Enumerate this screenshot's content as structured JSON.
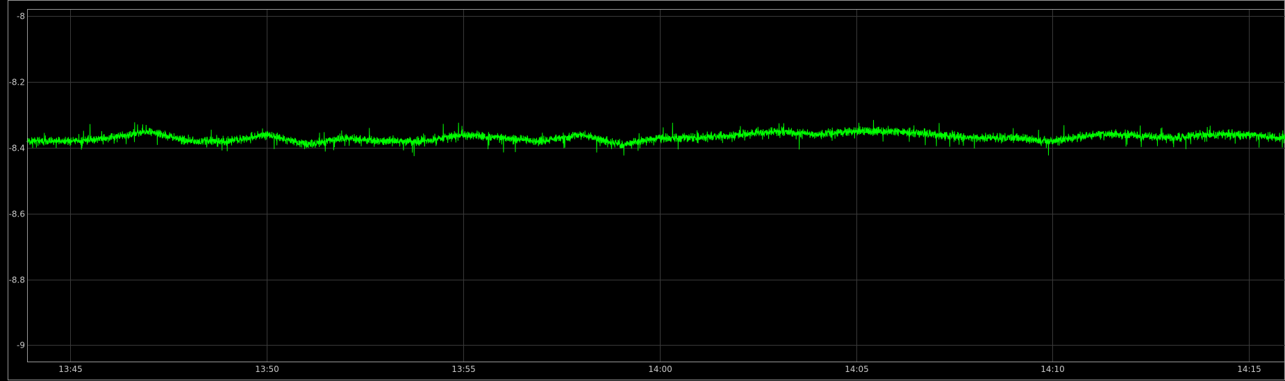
{
  "chart_data": {
    "type": "line",
    "title": "",
    "xlabel": "",
    "ylabel": "",
    "x_range": [
      "13:43:55",
      "14:15:55"
    ],
    "ylim": [
      -9.05,
      -7.98
    ],
    "grid": true,
    "legend": "none",
    "x_ticks": [
      {
        "time": "13:45",
        "label": "13:45"
      },
      {
        "time": "13:50",
        "label": "13:50"
      },
      {
        "time": "13:55",
        "label": "13:55"
      },
      {
        "time": "14:00",
        "label": "14:00"
      },
      {
        "time": "14:05",
        "label": "14:05"
      },
      {
        "time": "14:10",
        "label": "14:10"
      },
      {
        "time": "14:15",
        "label": "14:15"
      }
    ],
    "y_ticks": [
      {
        "value": -8,
        "label": "-8"
      },
      {
        "value": -8.2,
        "label": "-8.2"
      },
      {
        "value": -8.4,
        "label": "-8.4"
      },
      {
        "value": -8.6,
        "label": "-8.6"
      },
      {
        "value": -8.8,
        "label": "-8.8"
      },
      {
        "value": -9,
        "label": "-9"
      }
    ],
    "series": [
      {
        "color": "#00ff00",
        "x": [
          "13:44:00",
          "13:45:00",
          "13:46:00",
          "13:47:00",
          "13:48:00",
          "13:49:00",
          "13:50:00",
          "13:51:00",
          "13:52:00",
          "13:53:00",
          "13:54:00",
          "13:55:00",
          "13:56:00",
          "13:57:00",
          "13:58:00",
          "13:59:00",
          "14:00:00",
          "14:01:00",
          "14:02:00",
          "14:03:00",
          "14:04:00",
          "14:05:00",
          "14:06:00",
          "14:07:00",
          "14:08:00",
          "14:09:00",
          "14:10:00",
          "14:11:00",
          "14:12:00",
          "14:13:00",
          "14:14:00",
          "14:15:00",
          "14:15:50"
        ],
        "y": [
          -8.38,
          -8.38,
          -8.37,
          -8.35,
          -8.38,
          -8.38,
          -8.36,
          -8.39,
          -8.37,
          -8.38,
          -8.38,
          -8.36,
          -8.37,
          -8.38,
          -8.36,
          -8.39,
          -8.37,
          -8.37,
          -8.36,
          -8.35,
          -8.36,
          -8.35,
          -8.35,
          -8.36,
          -8.37,
          -8.37,
          -8.38,
          -8.36,
          -8.36,
          -8.37,
          -8.36,
          -8.36,
          -8.37
        ]
      }
    ]
  }
}
